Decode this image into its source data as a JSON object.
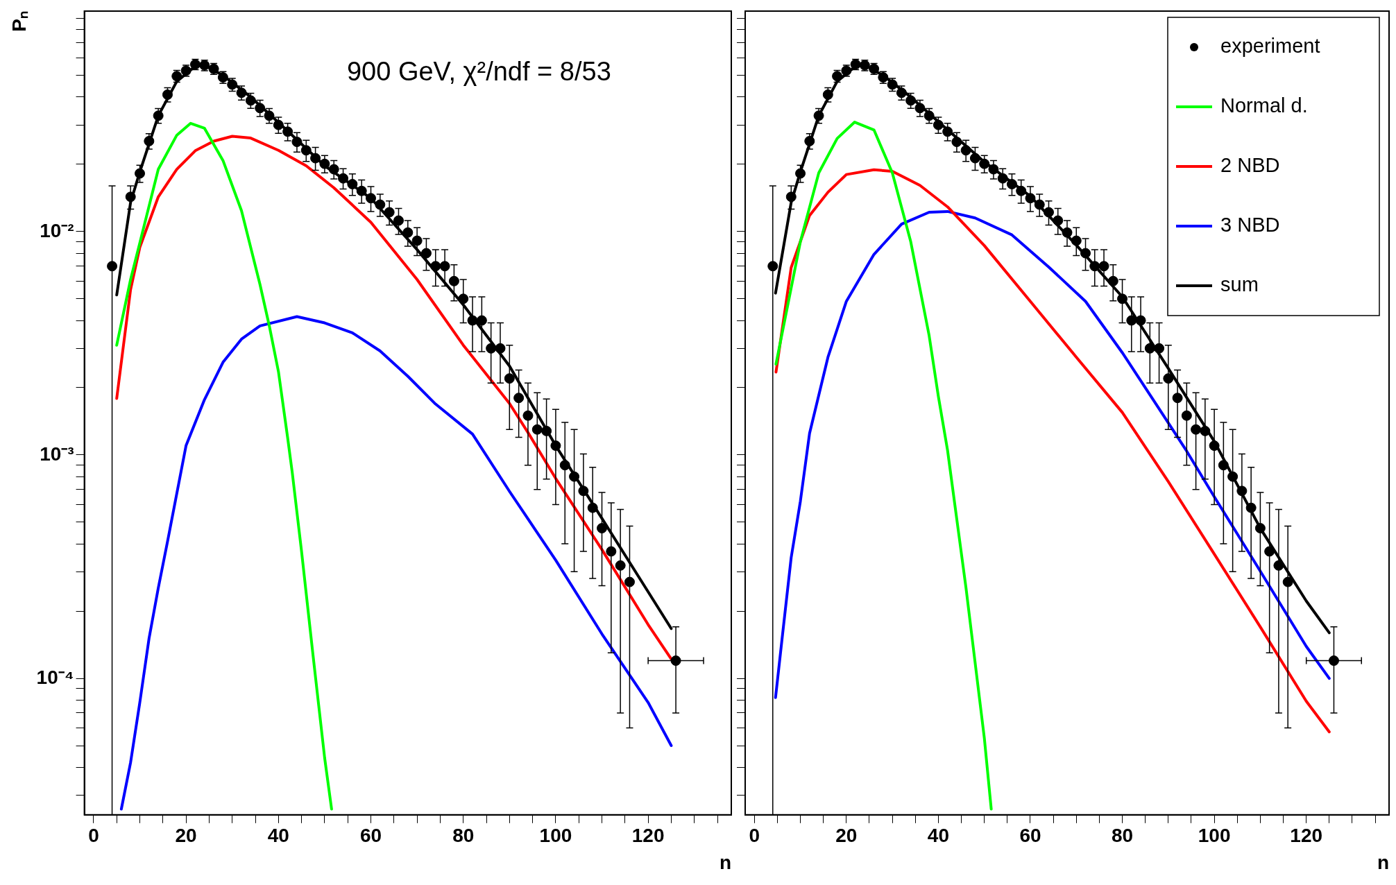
{
  "chart_data": [
    {
      "type": "line",
      "xlabel": "n",
      "ylabel": "Pₙ",
      "log": "y",
      "xlim": [
        -2,
        138
      ],
      "ylim": [
        2.45e-05,
        0.097
      ],
      "xticks": [
        {
          "value": 0,
          "label": "0"
        },
        {
          "value": 5,
          "label": null
        },
        {
          "value": 10,
          "label": null
        },
        {
          "value": 15,
          "label": null
        },
        {
          "value": 20,
          "label": "20"
        },
        {
          "value": 25,
          "label": null
        },
        {
          "value": 30,
          "label": null
        },
        {
          "value": 35,
          "label": null
        },
        {
          "value": 40,
          "label": "40"
        },
        {
          "value": 45,
          "label": null
        },
        {
          "value": 50,
          "label": null
        },
        {
          "value": 55,
          "label": null
        },
        {
          "value": 60,
          "label": "60"
        },
        {
          "value": 65,
          "label": null
        },
        {
          "value": 70,
          "label": null
        },
        {
          "value": 75,
          "label": null
        },
        {
          "value": 80,
          "label": "80"
        },
        {
          "value": 85,
          "label": null
        },
        {
          "value": 90,
          "label": null
        },
        {
          "value": 95,
          "label": null
        },
        {
          "value": 100,
          "label": "100"
        },
        {
          "value": 105,
          "label": null
        },
        {
          "value": 110,
          "label": null
        },
        {
          "value": 115,
          "label": null
        },
        {
          "value": 120,
          "label": "120"
        },
        {
          "value": 125,
          "label": null
        },
        {
          "value": 130,
          "label": null
        },
        {
          "value": 135,
          "label": null
        }
      ],
      "yticks": [
        {
          "value": 3e-05,
          "label": null
        },
        {
          "value": 4e-05,
          "label": null
        },
        {
          "value": 5e-05,
          "label": null
        },
        {
          "value": 6e-05,
          "label": null
        },
        {
          "value": 7e-05,
          "label": null
        },
        {
          "value": 8e-05,
          "label": null
        },
        {
          "value": 9e-05,
          "label": null
        },
        {
          "value": 0.0001,
          "label": "10⁻⁴"
        },
        {
          "value": 0.0002,
          "label": null
        },
        {
          "value": 0.0003,
          "label": null
        },
        {
          "value": 0.0004,
          "label": null
        },
        {
          "value": 0.0005,
          "label": null
        },
        {
          "value": 0.0006,
          "label": null
        },
        {
          "value": 0.0007,
          "label": null
        },
        {
          "value": 0.0008,
          "label": null
        },
        {
          "value": 0.0009,
          "label": null
        },
        {
          "value": 0.001,
          "label": "10⁻³"
        },
        {
          "value": 0.002,
          "label": null
        },
        {
          "value": 0.003,
          "label": null
        },
        {
          "value": 0.004,
          "label": null
        },
        {
          "value": 0.005,
          "label": null
        },
        {
          "value": 0.006,
          "label": null
        },
        {
          "value": 0.007,
          "label": null
        },
        {
          "value": 0.008,
          "label": null
        },
        {
          "value": 0.009,
          "label": null
        },
        {
          "value": 0.01,
          "label": "10⁻²"
        },
        {
          "value": 0.02,
          "label": null
        },
        {
          "value": 0.03,
          "label": null
        },
        {
          "value": 0.04,
          "label": null
        },
        {
          "value": 0.05,
          "label": null
        },
        {
          "value": 0.06,
          "label": null
        },
        {
          "value": 0.07,
          "label": null
        },
        {
          "value": 0.08,
          "label": null
        },
        {
          "value": 0.09,
          "label": null
        }
      ],
      "annotations": [
        "900 GeV, χ²/ndf = 8/53"
      ],
      "series": [
        {
          "type": "scatter",
          "marker": "circle",
          "color": "#000000",
          "x": [
            4,
            8,
            10,
            12,
            14,
            16,
            18,
            20,
            22,
            24,
            26,
            28,
            30,
            32,
            34,
            36,
            38,
            40,
            42,
            44,
            46,
            48,
            50,
            52,
            54,
            56,
            58,
            60,
            62,
            64,
            66,
            68,
            70,
            72,
            74,
            76,
            78,
            80,
            82,
            84,
            86,
            88,
            90,
            92,
            94,
            96,
            98,
            100,
            102,
            104,
            106,
            108,
            110,
            112,
            114,
            116,
            126
          ],
          "values": [
            0.007,
            0.0143,
            0.0182,
            0.0254,
            0.033,
            0.041,
            0.0496,
            0.0525,
            0.056,
            0.0555,
            0.0535,
            0.049,
            0.0455,
            0.0418,
            0.0386,
            0.0357,
            0.033,
            0.03,
            0.028,
            0.0252,
            0.0231,
            0.0213,
            0.0201,
            0.019,
            0.0173,
            0.0163,
            0.0152,
            0.0141,
            0.0132,
            0.0122,
            0.0112,
            0.0099,
            0.0091,
            0.008,
            0.007,
            0.007,
            0.006,
            0.005,
            0.004,
            0.004,
            0.003,
            0.003,
            0.0022,
            0.0018,
            0.0015,
            0.0013,
            0.00128,
            0.0011,
            0.0009,
            0.0008,
            0.00069,
            0.00058,
            0.00047,
            0.00037,
            0.00032,
            0.00027,
            0.00012
          ],
          "errors": [
            [
              2.45e-05,
              0.016
            ],
            0.0017,
            0.0016,
            0.002,
            0.0025,
            0.003,
            0.003,
            0.003,
            0.003,
            0.003,
            0.003,
            0.003,
            0.003,
            0.003,
            0.003,
            0.003,
            0.0025,
            0.0025,
            0.0025,
            0.0025,
            0.0025,
            0.0025,
            0.0018,
            0.0018,
            0.0018,
            0.0018,
            0.0018,
            0.0018,
            0.0015,
            0.0015,
            0.0015,
            0.0013,
            0.0013,
            0.0013,
            0.0013,
            0.0013,
            0.0011,
            0.0011,
            0.0011,
            0.0011,
            0.0009,
            0.0009,
            0.0009,
            0.0006,
            0.0006,
            0.0006,
            0.0005,
            0.0005,
            0.0005,
            0.0005,
            0.00032,
            0.0003,
            0.00021,
            0.00024,
            0.00025,
            0.00021,
            5e-05
          ],
          "xerrors": [
            null,
            null,
            null,
            null,
            null,
            null,
            null,
            null,
            null,
            null,
            null,
            null,
            null,
            null,
            null,
            null,
            null,
            null,
            null,
            null,
            null,
            null,
            null,
            null,
            null,
            null,
            null,
            null,
            null,
            null,
            null,
            null,
            null,
            null,
            null,
            null,
            null,
            null,
            null,
            null,
            null,
            null,
            null,
            null,
            null,
            null,
            null,
            null,
            null,
            null,
            null,
            null,
            null,
            null,
            null,
            null,
            6
          ]
        },
        {
          "color": "#00ff00",
          "x": [
            5,
            8,
            10,
            14,
            18,
            21,
            24,
            28,
            32,
            36,
            38,
            40,
            42,
            43,
            45,
            47.5,
            50,
            51.5
          ],
          "values": [
            0.0031,
            0.0061,
            0.0089,
            0.019,
            0.027,
            0.0305,
            0.029,
            0.0208,
            0.0124,
            0.0058,
            0.0038,
            0.00236,
            0.00119,
            0.00083,
            0.00037,
            0.000126,
            4.4e-05,
            2.6e-05
          ]
        },
        {
          "color": "#ff0000",
          "x": [
            5,
            8,
            10,
            14,
            18,
            22,
            26,
            30,
            34,
            40,
            46,
            52,
            60,
            70,
            80,
            90,
            94,
            100,
            110,
            120,
            125
          ],
          "values": [
            0.00179,
            0.0055,
            0.0085,
            0.0143,
            0.019,
            0.023,
            0.0254,
            0.0267,
            0.0262,
            0.0231,
            0.0197,
            0.0157,
            0.011,
            0.0061,
            0.0031,
            0.0017,
            0.00126,
            0.000785,
            0.000377,
            0.000174,
            0.000122
          ]
        },
        {
          "color": "#0000ff",
          "x": [
            6,
            8,
            10,
            12,
            14,
            16,
            20,
            24,
            28,
            32,
            36,
            44,
            50,
            56,
            62,
            68,
            74,
            82,
            90,
            100,
            110,
            120,
            125
          ],
          "values": [
            2.6e-05,
            4.2e-05,
            7.8e-05,
            0.000151,
            0.000254,
            0.00041,
            0.0011,
            0.00177,
            0.0026,
            0.0033,
            0.00378,
            0.00416,
            0.0039,
            0.00352,
            0.00292,
            0.00225,
            0.00169,
            0.00124,
            0.000687,
            0.000338,
            0.000158,
            7.8e-05,
            5e-05
          ]
        },
        {
          "color": "#000000",
          "x": [
            5,
            8,
            10,
            14,
            18,
            22,
            24,
            28,
            34,
            40,
            50,
            60,
            70,
            80,
            90,
            100,
            110,
            120,
            125
          ],
          "values": [
            0.0052,
            0.0135,
            0.0185,
            0.033,
            0.047,
            0.055,
            0.0555,
            0.05,
            0.04,
            0.0308,
            0.0197,
            0.0141,
            0.0083,
            0.0047,
            0.0025,
            0.0011,
            0.00052,
            0.000244,
            0.000167
          ]
        }
      ]
    },
    {
      "type": "line",
      "xlabel": "n",
      "log": "y",
      "tick_labels": "x",
      "legend": "top right",
      "xlim": [
        -2,
        138
      ],
      "ylim": [
        2.45e-05,
        0.097
      ],
      "xticks": [
        {
          "value": 0,
          "label": "0"
        },
        {
          "value": 5,
          "label": null
        },
        {
          "value": 10,
          "label": null
        },
        {
          "value": 15,
          "label": null
        },
        {
          "value": 20,
          "label": "20"
        },
        {
          "value": 25,
          "label": null
        },
        {
          "value": 30,
          "label": null
        },
        {
          "value": 35,
          "label": null
        },
        {
          "value": 40,
          "label": "40"
        },
        {
          "value": 45,
          "label": null
        },
        {
          "value": 50,
          "label": null
        },
        {
          "value": 55,
          "label": null
        },
        {
          "value": 60,
          "label": "60"
        },
        {
          "value": 65,
          "label": null
        },
        {
          "value": 70,
          "label": null
        },
        {
          "value": 75,
          "label": null
        },
        {
          "value": 80,
          "label": "80"
        },
        {
          "value": 85,
          "label": null
        },
        {
          "value": 90,
          "label": null
        },
        {
          "value": 95,
          "label": null
        },
        {
          "value": 100,
          "label": "100"
        },
        {
          "value": 105,
          "label": null
        },
        {
          "value": 110,
          "label": null
        },
        {
          "value": 115,
          "label": null
        },
        {
          "value": 120,
          "label": "120"
        },
        {
          "value": 125,
          "label": null
        },
        {
          "value": 130,
          "label": null
        },
        {
          "value": 135,
          "label": null
        }
      ],
      "yticks": [
        {
          "value": 3e-05,
          "label": null
        },
        {
          "value": 4e-05,
          "label": null
        },
        {
          "value": 5e-05,
          "label": null
        },
        {
          "value": 6e-05,
          "label": null
        },
        {
          "value": 7e-05,
          "label": null
        },
        {
          "value": 8e-05,
          "label": null
        },
        {
          "value": 9e-05,
          "label": null
        },
        {
          "value": 0.0001,
          "label": null
        },
        {
          "value": 0.0002,
          "label": null
        },
        {
          "value": 0.0003,
          "label": null
        },
        {
          "value": 0.0004,
          "label": null
        },
        {
          "value": 0.0005,
          "label": null
        },
        {
          "value": 0.0006,
          "label": null
        },
        {
          "value": 0.0007,
          "label": null
        },
        {
          "value": 0.0008,
          "label": null
        },
        {
          "value": 0.0009,
          "label": null
        },
        {
          "value": 0.001,
          "label": null
        },
        {
          "value": 0.002,
          "label": null
        },
        {
          "value": 0.003,
          "label": null
        },
        {
          "value": 0.004,
          "label": null
        },
        {
          "value": 0.005,
          "label": null
        },
        {
          "value": 0.006,
          "label": null
        },
        {
          "value": 0.007,
          "label": null
        },
        {
          "value": 0.008,
          "label": null
        },
        {
          "value": 0.009,
          "label": null
        },
        {
          "value": 0.01,
          "label": null
        },
        {
          "value": 0.02,
          "label": null
        },
        {
          "value": 0.03,
          "label": null
        },
        {
          "value": 0.04,
          "label": null
        },
        {
          "value": 0.05,
          "label": null
        },
        {
          "value": 0.06,
          "label": null
        },
        {
          "value": 0.07,
          "label": null
        },
        {
          "value": 0.08,
          "label": null
        },
        {
          "value": 0.09,
          "label": null
        }
      ],
      "series": [
        {
          "name": "experiment",
          "type": "scatter",
          "marker": "circle",
          "color": "#000000",
          "x": [
            4,
            8,
            10,
            12,
            14,
            16,
            18,
            20,
            22,
            24,
            26,
            28,
            30,
            32,
            34,
            36,
            38,
            40,
            42,
            44,
            46,
            48,
            50,
            52,
            54,
            56,
            58,
            60,
            62,
            64,
            66,
            68,
            70,
            72,
            74,
            76,
            78,
            80,
            82,
            84,
            86,
            88,
            90,
            92,
            94,
            96,
            98,
            100,
            102,
            104,
            106,
            108,
            110,
            112,
            114,
            116,
            126
          ],
          "values": [
            0.007,
            0.0143,
            0.0182,
            0.0254,
            0.033,
            0.041,
            0.0496,
            0.0525,
            0.056,
            0.0555,
            0.0535,
            0.049,
            0.0455,
            0.0418,
            0.0386,
            0.0357,
            0.033,
            0.03,
            0.028,
            0.0252,
            0.0231,
            0.0213,
            0.0201,
            0.019,
            0.0173,
            0.0163,
            0.0152,
            0.0141,
            0.0132,
            0.0122,
            0.0112,
            0.0099,
            0.0091,
            0.008,
            0.007,
            0.007,
            0.006,
            0.005,
            0.004,
            0.004,
            0.003,
            0.003,
            0.0022,
            0.0018,
            0.0015,
            0.0013,
            0.00128,
            0.0011,
            0.0009,
            0.0008,
            0.00069,
            0.00058,
            0.00047,
            0.00037,
            0.00032,
            0.00027,
            0.00012
          ],
          "errors": [
            [
              2.45e-05,
              0.016
            ],
            0.0017,
            0.0016,
            0.002,
            0.0025,
            0.003,
            0.003,
            0.003,
            0.003,
            0.003,
            0.003,
            0.003,
            0.003,
            0.003,
            0.003,
            0.003,
            0.0025,
            0.0025,
            0.0025,
            0.0025,
            0.0025,
            0.0025,
            0.0018,
            0.0018,
            0.0018,
            0.0018,
            0.0018,
            0.0018,
            0.0015,
            0.0015,
            0.0015,
            0.0013,
            0.0013,
            0.0013,
            0.0013,
            0.0013,
            0.0011,
            0.0011,
            0.0011,
            0.0011,
            0.0009,
            0.0009,
            0.0009,
            0.0006,
            0.0006,
            0.0006,
            0.0005,
            0.0005,
            0.0005,
            0.0005,
            0.00032,
            0.0003,
            0.00021,
            0.00024,
            0.00025,
            0.00021,
            5e-05
          ],
          "xerrors": [
            null,
            null,
            null,
            null,
            null,
            null,
            null,
            null,
            null,
            null,
            null,
            null,
            null,
            null,
            null,
            null,
            null,
            null,
            null,
            null,
            null,
            null,
            null,
            null,
            null,
            null,
            null,
            null,
            null,
            null,
            null,
            null,
            null,
            null,
            null,
            null,
            null,
            null,
            null,
            null,
            null,
            null,
            null,
            null,
            null,
            null,
            null,
            null,
            null,
            null,
            null,
            null,
            null,
            null,
            null,
            null,
            6
          ]
        },
        {
          "name": "Normal d.",
          "color": "#00ff00",
          "x": [
            4.7,
            10,
            14,
            18,
            21.8,
            26,
            30,
            34,
            38,
            40,
            42,
            46,
            50,
            51.5
          ],
          "values": [
            0.00255,
            0.009,
            0.0183,
            0.0261,
            0.0309,
            0.0285,
            0.0183,
            0.009,
            0.00342,
            0.00183,
            0.00105,
            0.000255,
            5.4e-05,
            2.6e-05
          ]
        },
        {
          "name": "2 NBD",
          "color": "#ff0000",
          "x": [
            4.7,
            8,
            12,
            16,
            20,
            26,
            30,
            36,
            42,
            50,
            60,
            70,
            80,
            90,
            100,
            110,
            120,
            125
          ],
          "values": [
            0.00235,
            0.0069,
            0.0118,
            0.015,
            0.018,
            0.0189,
            0.0186,
            0.0161,
            0.0129,
            0.00865,
            0.00487,
            0.00274,
            0.00155,
            0.00076,
            0.00036,
            0.00017,
            7.9e-05,
            5.76e-05
          ]
        },
        {
          "name": "3 NBD",
          "color": "#0000ff",
          "x": [
            4.6,
            6,
            8,
            10,
            12,
            16,
            20,
            26,
            32,
            38,
            42,
            48,
            56,
            64,
            72,
            80,
            88,
            94,
            100,
            110,
            120,
            125
          ],
          "values": [
            8.2e-05,
            0.000149,
            0.000347,
            0.00062,
            0.00125,
            0.00274,
            0.00487,
            0.0079,
            0.0108,
            0.0122,
            0.0123,
            0.0115,
            0.00966,
            0.00694,
            0.00487,
            0.00287,
            0.00161,
            0.00104,
            0.00065,
            0.000302,
            0.000139,
            0.0001
          ]
        },
        {
          "name": "sum",
          "color": "#000000",
          "x": [
            4.6,
            8,
            10,
            14,
            18,
            22,
            24,
            28,
            34,
            40,
            50,
            60,
            70,
            80,
            90,
            100,
            110,
            120,
            125
          ],
          "values": [
            0.0053,
            0.0135,
            0.0185,
            0.033,
            0.047,
            0.055,
            0.0555,
            0.05,
            0.04,
            0.031,
            0.0205,
            0.0144,
            0.0087,
            0.0051,
            0.00244,
            0.00115,
            0.00047,
            0.000222,
            0.00016
          ]
        }
      ]
    }
  ]
}
